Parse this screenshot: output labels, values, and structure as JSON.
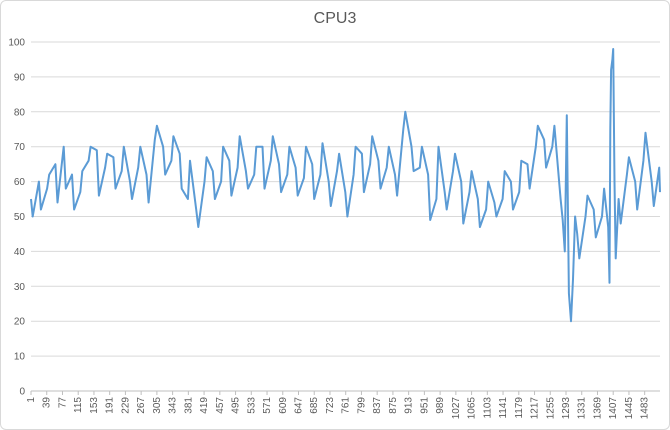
{
  "chart_data": {
    "type": "line",
    "title": "CPU3",
    "xlabel": "",
    "ylabel": "",
    "ylim": [
      0,
      100
    ],
    "yticks": [
      0,
      10,
      20,
      30,
      40,
      50,
      60,
      70,
      80,
      90,
      100
    ],
    "xlim": [
      1,
      1520
    ],
    "xticks": [
      1,
      39,
      77,
      115,
      153,
      191,
      229,
      267,
      305,
      343,
      381,
      419,
      457,
      495,
      533,
      571,
      609,
      647,
      685,
      723,
      761,
      799,
      837,
      875,
      913,
      951,
      989,
      1027,
      1065,
      1103,
      1141,
      1179,
      1217,
      1255,
      1293,
      1331,
      1369,
      1407,
      1445,
      1483
    ],
    "grid": true,
    "legend": "none",
    "line_color": "#5b9bd5",
    "series": [
      {
        "x": [
          1,
          20,
          40,
          60,
          80,
          100,
          120,
          140,
          160,
          180,
          200,
          220,
          240,
          260,
          280,
          300,
          320,
          340,
          360,
          380,
          400,
          420,
          440,
          460,
          480,
          500,
          520,
          540,
          560,
          580,
          600,
          620,
          640,
          660,
          680,
          700,
          720,
          740,
          760,
          780,
          800,
          820,
          840,
          860,
          880,
          900,
          920,
          940,
          960,
          980,
          1000,
          1020,
          1040,
          1060,
          1080,
          1100,
          1120,
          1140,
          1160,
          1180,
          1200,
          1220,
          1240,
          1260,
          1280,
          1290,
          1300,
          1310,
          1320,
          1340,
          1360,
          1380,
          1395,
          1400,
          1405,
          1410,
          1420,
          1440,
          1460,
          1480,
          1500,
          1520
        ],
        "values": [
          55,
          60,
          58,
          65,
          70,
          62,
          57,
          66,
          69,
          64,
          67,
          63,
          60,
          64,
          62,
          72,
          70,
          66,
          68,
          55,
          52,
          60,
          63,
          60,
          66,
          64,
          63,
          62,
          70,
          66,
          65,
          62,
          64,
          61,
          65,
          62,
          60,
          63,
          57,
          62,
          68,
          65,
          66,
          64,
          62,
          75,
          70,
          64,
          62,
          55,
          57,
          63,
          60,
          57,
          55,
          52,
          54,
          55,
          60,
          57,
          65,
          70,
          72,
          70,
          55,
          40,
          28,
          32,
          45,
          50,
          52,
          50,
          47,
          75,
          95,
          60,
          55,
          62,
          60,
          66,
          60,
          57
        ]
      },
      {
        "x": [
          5,
          25,
          45,
          65,
          85,
          105,
          125,
          145,
          165,
          185,
          205,
          225,
          245,
          265,
          285,
          305,
          325,
          345,
          365,
          385,
          405,
          425,
          445,
          465,
          485,
          505,
          525,
          545,
          565,
          585,
          605,
          625,
          645,
          665,
          685,
          705,
          725,
          745,
          765,
          785,
          805,
          825,
          845,
          865,
          885,
          905,
          925,
          945,
          965,
          985,
          1005,
          1025,
          1045,
          1065,
          1085,
          1105,
          1125,
          1145,
          1165,
          1185,
          1205,
          1225,
          1245,
          1265,
          1285,
          1295,
          1305,
          1315,
          1325,
          1345,
          1365,
          1385,
          1398,
          1402,
          1407,
          1413,
          1425,
          1445,
          1465,
          1485,
          1505,
          1518
        ],
        "values": [
          50,
          52,
          62,
          54,
          58,
          52,
          63,
          70,
          56,
          68,
          58,
          70,
          55,
          70,
          54,
          76,
          62,
          73,
          58,
          66,
          47,
          67,
          55,
          70,
          56,
          73,
          58,
          70,
          58,
          73,
          57,
          70,
          56,
          70,
          55,
          71,
          53,
          68,
          50,
          70,
          57,
          73,
          58,
          70,
          56,
          80,
          63,
          70,
          49,
          70,
          52,
          68,
          48,
          63,
          47,
          60,
          50,
          63,
          52,
          66,
          58,
          76,
          64,
          76,
          49,
          79,
          20,
          50,
          38,
          56,
          44,
          58,
          31,
          92,
          98,
          38,
          48,
          67,
          52,
          74,
          53,
          64
        ]
      }
    ]
  }
}
